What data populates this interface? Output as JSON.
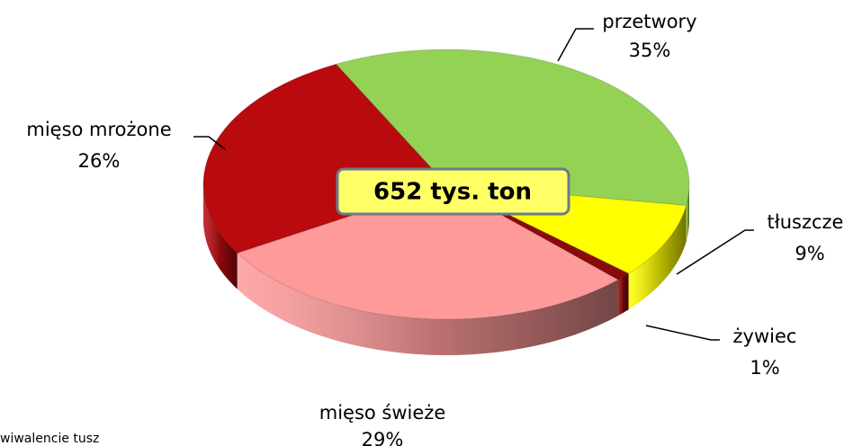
{
  "chart_data": {
    "type": "pie",
    "categories": [
      "przetwory",
      "tłuszcze",
      "żywiec",
      "mięso świeże",
      "mięso mrożone"
    ],
    "values": [
      35,
      9,
      1,
      29,
      26
    ],
    "value_labels": [
      "35%",
      "9%",
      "1%",
      "29%",
      "26%"
    ],
    "colors": [
      "#94d256",
      "#ffff00",
      "#8a0a0a",
      "#ff9a9a",
      "#b90a0e"
    ],
    "center_label": "652 tys. ton",
    "note": "wiwalencie tusz"
  }
}
